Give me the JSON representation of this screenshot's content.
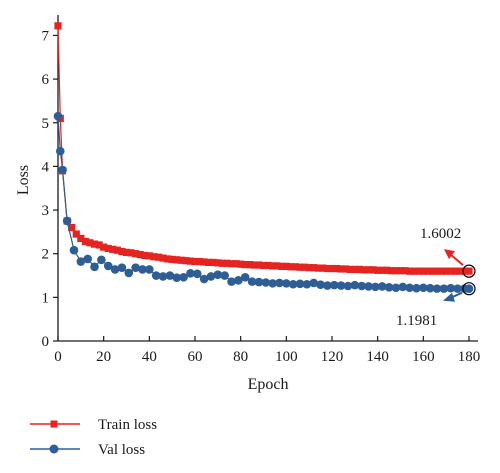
{
  "chart_data": {
    "type": "line",
    "title": "",
    "xlabel": "Epoch",
    "ylabel": "Loss",
    "xlim": [
      0,
      180
    ],
    "ylim": [
      0,
      7.5
    ],
    "xticks": [
      0,
      20,
      40,
      60,
      80,
      100,
      120,
      140,
      160,
      180
    ],
    "yticks": [
      0,
      1,
      2,
      3,
      4,
      5,
      6,
      7
    ],
    "grid": false,
    "legend_position": "bottom-left",
    "series": [
      {
        "name": "Train loss",
        "color": "#e52421",
        "marker": "square",
        "x": [
          0,
          1,
          2,
          4,
          6,
          8,
          10,
          12,
          14,
          16,
          18,
          20,
          22,
          24,
          26,
          28,
          30,
          32,
          34,
          36,
          38,
          40,
          42,
          44,
          46,
          48,
          50,
          52,
          54,
          56,
          58,
          60,
          62,
          64,
          66,
          68,
          70,
          72,
          74,
          76,
          78,
          80,
          82,
          84,
          86,
          88,
          90,
          92,
          94,
          96,
          98,
          100,
          102,
          104,
          106,
          108,
          110,
          112,
          114,
          116,
          118,
          120,
          122,
          124,
          126,
          128,
          130,
          132,
          134,
          136,
          138,
          140,
          142,
          144,
          146,
          148,
          150,
          152,
          154,
          156,
          158,
          160,
          162,
          164,
          166,
          168,
          170,
          172,
          174,
          176,
          178,
          180
        ],
        "y": [
          7.22,
          5.1,
          3.9,
          2.75,
          2.6,
          2.45,
          2.35,
          2.28,
          2.25,
          2.22,
          2.2,
          2.15,
          2.12,
          2.1,
          2.08,
          2.05,
          2.03,
          2.02,
          2.0,
          1.98,
          1.96,
          1.95,
          1.93,
          1.92,
          1.9,
          1.88,
          1.87,
          1.86,
          1.85,
          1.84,
          1.83,
          1.82,
          1.82,
          1.81,
          1.8,
          1.8,
          1.79,
          1.78,
          1.78,
          1.77,
          1.77,
          1.76,
          1.75,
          1.75,
          1.74,
          1.74,
          1.73,
          1.73,
          1.72,
          1.72,
          1.71,
          1.71,
          1.7,
          1.7,
          1.69,
          1.69,
          1.68,
          1.68,
          1.67,
          1.67,
          1.66,
          1.66,
          1.66,
          1.65,
          1.65,
          1.64,
          1.64,
          1.64,
          1.63,
          1.63,
          1.63,
          1.62,
          1.62,
          1.62,
          1.61,
          1.61,
          1.61,
          1.61,
          1.6,
          1.6,
          1.6,
          1.6,
          1.6,
          1.6,
          1.6,
          1.6,
          1.6,
          1.6,
          1.6,
          1.6,
          1.6,
          1.6002
        ]
      },
      {
        "name": "Val loss",
        "color": "#2e5e95",
        "marker": "circle",
        "x": [
          0,
          1,
          2,
          4,
          7,
          10,
          13,
          16,
          19,
          22,
          25,
          28,
          31,
          34,
          37,
          40,
          43,
          46,
          49,
          52,
          55,
          58,
          61,
          64,
          67,
          70,
          73,
          76,
          79,
          82,
          85,
          88,
          91,
          94,
          97,
          100,
          103,
          106,
          109,
          112,
          115,
          118,
          121,
          124,
          127,
          130,
          133,
          136,
          139,
          142,
          145,
          148,
          151,
          154,
          157,
          160,
          163,
          166,
          169,
          172,
          175,
          178,
          180
        ],
        "y": [
          5.15,
          4.35,
          3.92,
          2.75,
          2.08,
          1.82,
          1.88,
          1.7,
          1.86,
          1.72,
          1.64,
          1.68,
          1.56,
          1.68,
          1.64,
          1.64,
          1.5,
          1.48,
          1.5,
          1.45,
          1.46,
          1.55,
          1.54,
          1.42,
          1.48,
          1.52,
          1.5,
          1.36,
          1.39,
          1.46,
          1.36,
          1.35,
          1.34,
          1.32,
          1.33,
          1.32,
          1.3,
          1.31,
          1.3,
          1.33,
          1.29,
          1.27,
          1.28,
          1.27,
          1.26,
          1.28,
          1.26,
          1.25,
          1.24,
          1.25,
          1.23,
          1.22,
          1.24,
          1.22,
          1.21,
          1.22,
          1.21,
          1.2,
          1.2,
          1.21,
          1.2,
          1.2,
          1.1981
        ]
      }
    ],
    "annotations": [
      {
        "text": "1.6002",
        "x": 180,
        "y": 1.6002,
        "arrow_color": "#e52421"
      },
      {
        "text": "1.1981",
        "x": 180,
        "y": 1.1981,
        "arrow_color": "#2e5e95"
      }
    ]
  }
}
